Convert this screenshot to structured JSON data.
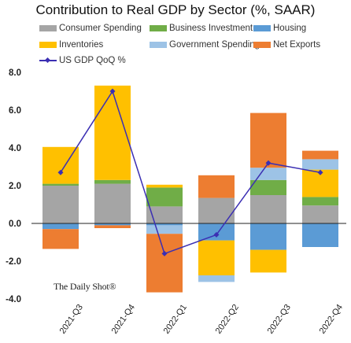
{
  "chart_data": {
    "type": "bar",
    "stacked": true,
    "title": "Contribution to Real GDP by Sector (%, SAAR)",
    "categories": [
      "2021-Q3",
      "2021-Q4",
      "2022-Q1",
      "2022-Q2",
      "2022-Q3",
      "2022-Q4"
    ],
    "ylim": [
      -4.0,
      8.0
    ],
    "yticks": [
      "8.0",
      "6.0",
      "4.0",
      "2.0",
      "0.0",
      "-2.0",
      "-4.0"
    ],
    "ytick_values": [
      8,
      6,
      4,
      2,
      0,
      -2,
      -4
    ],
    "grid": false,
    "legend_position": "top",
    "series": [
      {
        "name": "Consumer Spending",
        "color": "#a5a5a5",
        "values": [
          2.0,
          2.1,
          0.9,
          1.35,
          1.5,
          0.95
        ]
      },
      {
        "name": "Business Investment",
        "color": "#70ad47",
        "values": [
          0.1,
          0.2,
          1.0,
          0.0,
          0.8,
          0.45
        ]
      },
      {
        "name": "Housing",
        "color": "#5b9bd5",
        "values": [
          -0.3,
          -0.1,
          -0.1,
          -0.9,
          -1.4,
          -1.25
        ]
      },
      {
        "name": "Inventories",
        "color": "#ffc000",
        "values": [
          1.95,
          5.0,
          0.15,
          -1.85,
          -1.2,
          1.45
        ]
      },
      {
        "name": "Government Spending",
        "color": "#9dc3e6",
        "values": [
          0.0,
          0.0,
          -0.45,
          -0.35,
          0.65,
          0.55
        ]
      },
      {
        "name": "Net Exports",
        "color": "#ed7d31",
        "values": [
          -1.05,
          -0.15,
          -3.1,
          1.2,
          2.9,
          0.45
        ]
      }
    ],
    "line_series": {
      "name": "US GDP QoQ %",
      "color": "#3b2fb3",
      "values": [
        2.7,
        7.0,
        -1.6,
        -0.6,
        3.2,
        2.7
      ]
    }
  },
  "watermark": "The Daily Shot®"
}
